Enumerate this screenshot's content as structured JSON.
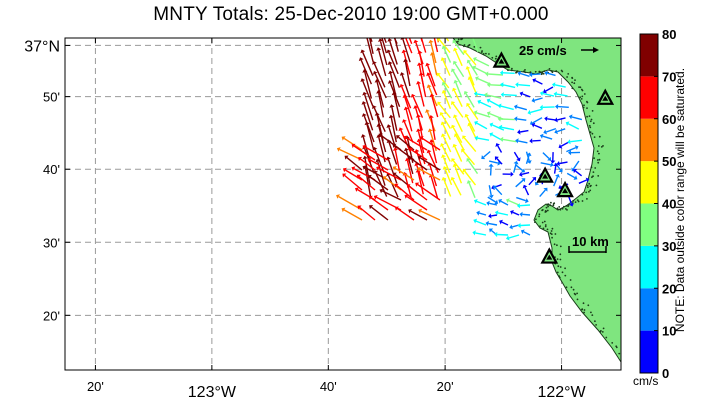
{
  "title": "MNTY Totals: 25-Dec-2010 19:00 GMT+0.000",
  "colors": {
    "land": "#7fe57f",
    "coast": "#1a3d1a",
    "grid": "#9a9a9a"
  },
  "map": {
    "lon_range": [
      -123.42,
      -121.83
    ],
    "lat_range": [
      36.208,
      36.967
    ],
    "x_ticks": [
      {
        "lon": -123.333,
        "label": "20'"
      },
      {
        "lon": -123.0,
        "label": "123°W"
      },
      {
        "lon": -122.667,
        "label": "40'"
      },
      {
        "lon": -122.333,
        "label": "20'"
      },
      {
        "lon": -122.0,
        "label": "122°W"
      }
    ],
    "y_ticks": [
      {
        "lat": 36.333,
        "label": "20'"
      },
      {
        "lat": 36.5,
        "label": "30'"
      },
      {
        "lat": 36.667,
        "label": "40'"
      },
      {
        "lat": 36.833,
        "label": "50'"
      },
      {
        "lat": 36.95,
        "label": "37°N"
      }
    ],
    "stations": [
      {
        "lon": -122.172,
        "lat": 36.913
      },
      {
        "lon": -121.875,
        "lat": 36.828
      },
      {
        "lon": -122.047,
        "lat": 36.65
      },
      {
        "lon": -121.99,
        "lat": 36.617
      },
      {
        "lon": -122.035,
        "lat": 36.465
      }
    ],
    "reference_vector_label": "25 cm/s",
    "scale_bar_label": "10 km"
  },
  "colorbar": {
    "ticks": [
      "0",
      "10",
      "20",
      "30",
      "40",
      "50",
      "60",
      "70",
      "80"
    ],
    "colors": [
      "#0000ff",
      "#0080ff",
      "#00ffff",
      "#80ff80",
      "#ffff00",
      "#ff8000",
      "#ff0000",
      "#800000"
    ],
    "units": "cm/s",
    "note": "NOTE: Data outside color range will be saturated."
  },
  "icons": {
    "station": "station-triangle-icon",
    "reference_arrow": "arrow-right-icon"
  }
}
